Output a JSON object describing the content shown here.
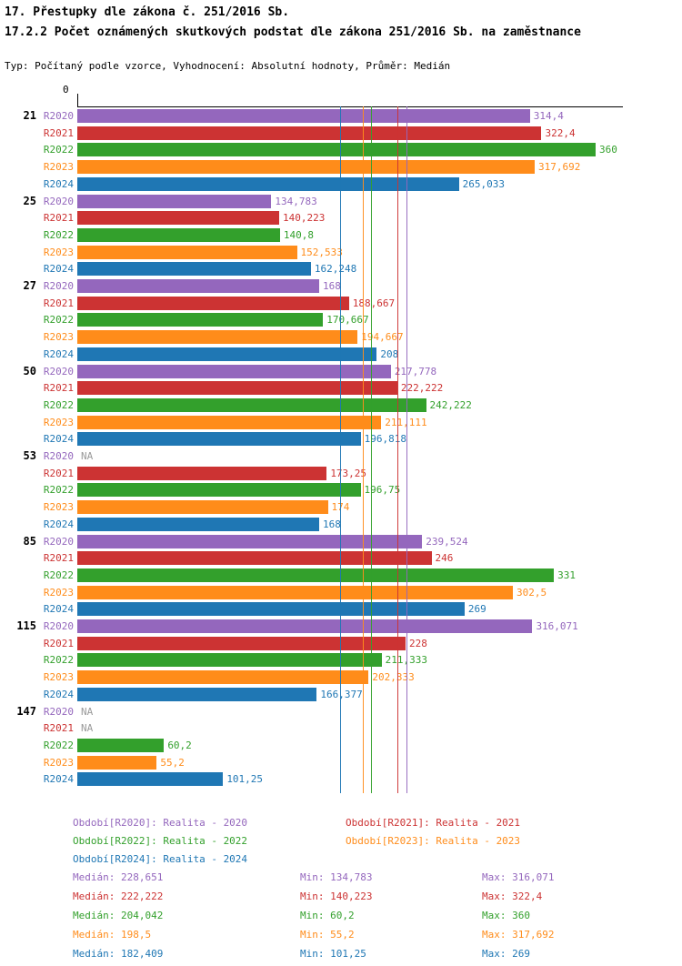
{
  "title": "17. Přestupky dle zákona č. 251/2016 Sb.",
  "subtitle": "17.2.2 Počet oznámených skutkových podstat dle zákona 251/2016 Sb. na zaměstnance",
  "meta": "Typ: Počítaný podle vzorce, Vyhodnocení: Absolutní hodnoty, Průměr: Medián",
  "chart_data": {
    "type": "bar",
    "orientation": "horizontal",
    "title": "17.2.2 Počet oznámených skutkových podstat dle zákona 251/2016 Sb. na zaměstnance",
    "xlabel": "",
    "ylabel": "",
    "axis": {
      "origin_label": "0",
      "xmax": 360
    },
    "na_label": "NA",
    "na_color": "#9a9a9a",
    "series": [
      {
        "id": "R2020",
        "label": "R2020",
        "color": "#9467BD",
        "legend_text": "Období[R2020]: Realita - 2020",
        "median": 228.651,
        "median_text": "Medián: 228,651",
        "min_text": "Min: 134,783",
        "max_text": "Max: 316,071"
      },
      {
        "id": "R2021",
        "label": "R2021",
        "color": "#CC3333",
        "legend_text": "Období[R2021]: Realita - 2021",
        "median": 222.222,
        "median_text": "Medián: 222,222",
        "min_text": "Min: 140,223",
        "max_text": "Max: 322,4"
      },
      {
        "id": "R2022",
        "label": "R2022",
        "color": "#33A02C",
        "legend_text": "Období[R2022]: Realita - 2022",
        "median": 204.042,
        "median_text": "Medián: 204,042",
        "min_text": "Min: 60,2",
        "max_text": "Max: 360"
      },
      {
        "id": "R2023",
        "label": "R2023",
        "color": "#FF8C1A",
        "legend_text": "Období[R2023]: Realita - 2023",
        "median": 198.5,
        "median_text": "Medián: 198,5",
        "min_text": "Min: 55,2",
        "max_text": "Max: 317,692"
      },
      {
        "id": "R2024",
        "label": "R2024",
        "color": "#1F77B4",
        "legend_text": "Období[R2024]: Realita - 2024",
        "median": 182.409,
        "median_text": "Medián: 182,409",
        "min_text": "Min: 101,25",
        "max_text": "Max: 269"
      }
    ],
    "groups": [
      {
        "label": "21",
        "values": [
          314.4,
          322.4,
          360,
          317.692,
          265.033
        ],
        "labels": [
          "314,4",
          "322,4",
          "360",
          "317,692",
          "265,033"
        ]
      },
      {
        "label": "25",
        "values": [
          134.783,
          140.223,
          140.8,
          152.533,
          162.248
        ],
        "labels": [
          "134,783",
          "140,223",
          "140,8",
          "152,533",
          "162,248"
        ]
      },
      {
        "label": "27",
        "values": [
          168,
          188.667,
          170.667,
          194.667,
          208
        ],
        "labels": [
          "168",
          "188,667",
          "170,667",
          "194,667",
          "208"
        ]
      },
      {
        "label": "50",
        "values": [
          217.778,
          222.222,
          242.222,
          211.111,
          196.818
        ],
        "labels": [
          "217,778",
          "222,222",
          "242,222",
          "211,111",
          "196,818"
        ]
      },
      {
        "label": "53",
        "values": [
          null,
          173.25,
          196.75,
          174,
          168
        ],
        "labels": [
          "NA",
          "173,25",
          "196,75",
          "174",
          "168"
        ]
      },
      {
        "label": "85",
        "values": [
          239.524,
          246,
          331,
          302.5,
          269
        ],
        "labels": [
          "239,524",
          "246",
          "331",
          "302,5",
          "269"
        ]
      },
      {
        "label": "115",
        "values": [
          316.071,
          228,
          211.333,
          202.333,
          166.377
        ],
        "labels": [
          "316,071",
          "228",
          "211,333",
          "202,333",
          "166,377"
        ]
      },
      {
        "label": "147",
        "values": [
          null,
          null,
          60.2,
          55.2,
          101.25
        ],
        "labels": [
          "NA",
          "NA",
          "60,2",
          "55,2",
          "101,25"
        ]
      }
    ]
  }
}
